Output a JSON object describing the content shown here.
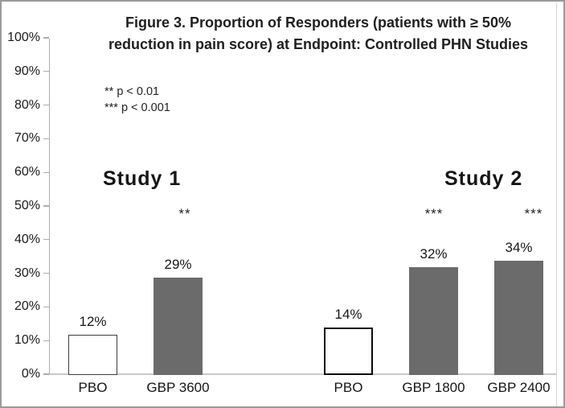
{
  "figure": {
    "title_lines": [
      "Figure 3. Proportion of Responders (patients with ≥ 50%",
      "reduction in pain score) at Endpoint: Controlled PHN Studies"
    ],
    "significance_legend": [
      "** p < 0.01",
      "*** p < 0.001"
    ],
    "group_labels": [
      "Study 1",
      "Study 2"
    ]
  },
  "colors": {
    "bar_fill_gray": "#6b6b6b",
    "axis": "#aeaeae",
    "baseline": "#c9c9c9",
    "outer_border": "#9b9b9b"
  },
  "chart_data": {
    "type": "bar",
    "title": "Figure 3. Proportion of Responders (patients with ≥ 50% reduction in pain score) at Endpoint: Controlled PHN Studies",
    "xlabel": "",
    "ylabel": "",
    "ylim": [
      0,
      100
    ],
    "ytick_step": 10,
    "ytick_labels": [
      "0%",
      "10%",
      "20%",
      "30%",
      "40%",
      "50%",
      "60%",
      "70%",
      "80%",
      "90%",
      "100%"
    ],
    "grid": false,
    "legend_position": "upper-left",
    "annotations": [
      "** p < 0.01",
      "*** p < 0.001"
    ],
    "groups": [
      {
        "label": "Study 1",
        "bars": [
          {
            "category": "PBO",
            "value": 12,
            "value_label": "12%",
            "significance": "",
            "fill": "#ffffff",
            "border_color": "#3d3d3d",
            "border_px": 1.6
          },
          {
            "category": "GBP 3600",
            "value": 29,
            "value_label": "29%",
            "significance": "**",
            "fill": "#6b6b6b",
            "border_color": "",
            "border_px": 0
          }
        ]
      },
      {
        "label": "Study 2",
        "bars": [
          {
            "category": "PBO",
            "value": 14,
            "value_label": "14%",
            "significance": "",
            "fill": "#ffffff",
            "border_color": "#0a0a0a",
            "border_px": 2.2
          },
          {
            "category": "GBP 1800",
            "value": 32,
            "value_label": "32%",
            "significance": "***",
            "fill": "#6b6b6b",
            "border_color": "",
            "border_px": 0
          },
          {
            "category": "GBP 2400",
            "value": 34,
            "value_label": "34%",
            "significance": "***",
            "fill": "#6b6b6b",
            "border_color": "",
            "border_px": 0
          }
        ]
      }
    ]
  }
}
